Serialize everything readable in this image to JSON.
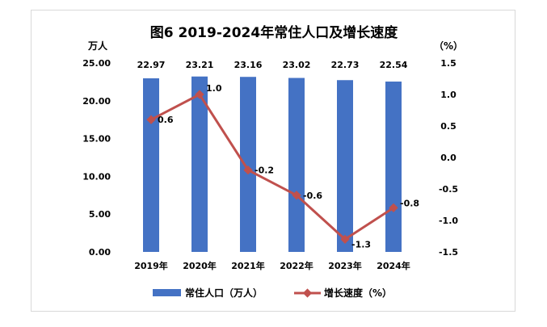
{
  "chart_data": {
    "type": "bar+line",
    "title": "图6  2019-2024年常住人口及增长速度",
    "categories": [
      "2019年",
      "2020年",
      "2021年",
      "2022年",
      "2023年",
      "2024年"
    ],
    "series": [
      {
        "name": "常住人口（万人）",
        "type": "bar",
        "axis": "left",
        "color": "#4472C4",
        "values": [
          22.97,
          23.21,
          23.16,
          23.02,
          22.73,
          22.54
        ],
        "labels": [
          "22.97",
          "23.21",
          "23.16",
          "23.02",
          "22.73",
          "22.54"
        ]
      },
      {
        "name": "增长速度（%）",
        "type": "line",
        "axis": "right",
        "color": "#C0504D",
        "values": [
          0.6,
          1.0,
          -0.2,
          -0.6,
          -1.3,
          -0.8
        ],
        "labels": [
          "0.6",
          "1.0",
          "-0.2",
          "-0.6",
          "-1.3",
          "-0.8"
        ]
      }
    ],
    "y_left": {
      "unit": "万人",
      "min": 0,
      "max": 25,
      "ticks": [
        "0.00",
        "5.00",
        "10.00",
        "15.00",
        "20.00",
        "25.00"
      ]
    },
    "y_right": {
      "unit": "（%）",
      "min": -1.5,
      "max": 1.5,
      "ticks": [
        "-1.5",
        "-1.0",
        "-0.5",
        "0.0",
        "0.5",
        "1.0",
        "1.5"
      ]
    },
    "legend_position": "bottom",
    "grid": false
  }
}
